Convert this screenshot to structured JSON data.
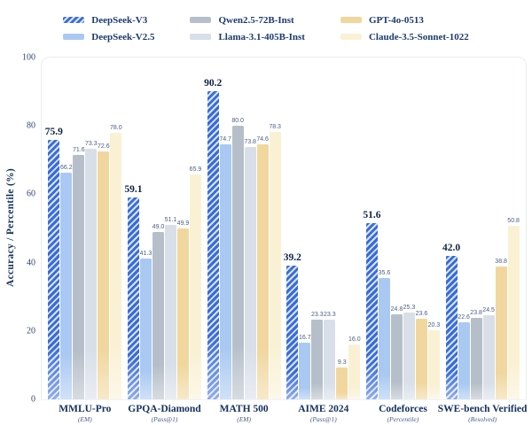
{
  "chart_data": {
    "type": "bar",
    "title": "",
    "ylabel": "Accuracy / Percentile (%)",
    "ylim": [
      0,
      100
    ],
    "yticks": [
      0,
      20,
      40,
      60,
      80,
      100
    ],
    "grid": false,
    "legend_position": "top-center",
    "categories": [
      {
        "label": "MMLU-Pro",
        "sub": "(EM)"
      },
      {
        "label": "GPQA-Diamond",
        "sub": "(Pass@1)"
      },
      {
        "label": "MATH 500",
        "sub": "(EM)"
      },
      {
        "label": "AIME 2024",
        "sub": "(Pass@1)"
      },
      {
        "label": "Codeforces",
        "sub": "(Percentile)"
      },
      {
        "label": "SWE-bench Verified",
        "sub": "(Resolved)"
      }
    ],
    "series": [
      {
        "name": "DeepSeek-V3",
        "color": "#3a6bd8",
        "stripe": "#d6e4fa",
        "hatch": true,
        "emphasis": true,
        "values": [
          75.9,
          59.1,
          90.2,
          39.2,
          51.6,
          42.0
        ]
      },
      {
        "name": "DeepSeek-V2.5",
        "color": "#aac9f2",
        "hatch": false,
        "emphasis": false,
        "values": [
          66.2,
          41.3,
          74.7,
          16.7,
          35.6,
          22.6
        ]
      },
      {
        "name": "Qwen2.5-72B-Inst",
        "color": "#b6bfc9",
        "hatch": false,
        "emphasis": false,
        "values": [
          71.6,
          49.0,
          80.0,
          23.3,
          24.8,
          23.8
        ]
      },
      {
        "name": "Llama-3.1-405B-Inst",
        "color": "#d8dfe8",
        "hatch": false,
        "emphasis": false,
        "values": [
          73.3,
          51.1,
          73.8,
          23.3,
          25.3,
          24.5
        ]
      },
      {
        "name": "GPT-4o-0513",
        "color": "#f1d79e",
        "hatch": false,
        "emphasis": false,
        "values": [
          72.6,
          49.9,
          74.6,
          9.3,
          23.6,
          38.8
        ]
      },
      {
        "name": "Claude-3.5-Sonnet-1022",
        "color": "#faf1d5",
        "hatch": false,
        "emphasis": false,
        "values": [
          78.0,
          65.9,
          78.3,
          16.0,
          20.3,
          50.8
        ]
      }
    ],
    "colors": {
      "legend_text": "#1c3a6e",
      "tick_text": "#31456e",
      "value_small_text": "#4a5d85",
      "value_bold_text": "#0e2248",
      "frame_border": "#e7edf7"
    }
  }
}
